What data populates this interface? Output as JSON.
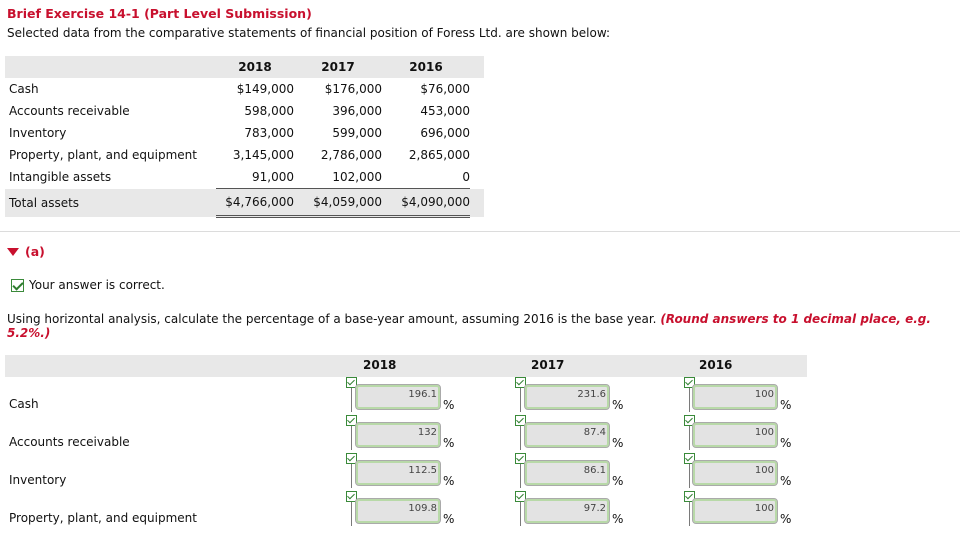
{
  "header": {
    "title": "Brief Exercise 14-1 (Part Level Submission)",
    "subtitle": "Selected data from the comparative statements of financial position of Foress Ltd. are shown below:"
  },
  "statement": {
    "years": [
      "2018",
      "2017",
      "2016"
    ],
    "rows": [
      {
        "label": "Cash",
        "values": [
          "$149,000",
          "$176,000",
          "$76,000"
        ]
      },
      {
        "label": "Accounts receivable",
        "values": [
          "598,000",
          "396,000",
          "453,000"
        ]
      },
      {
        "label": "Inventory",
        "values": [
          "783,000",
          "599,000",
          "696,000"
        ]
      },
      {
        "label": "Property, plant, and equipment",
        "values": [
          "3,145,000",
          "2,786,000",
          "2,865,000"
        ]
      },
      {
        "label": "Intangible assets",
        "values": [
          "91,000",
          "102,000",
          "0"
        ]
      }
    ],
    "total": {
      "label": "Total assets",
      "values": [
        "$4,766,000",
        "$4,059,000",
        "$4,090,000"
      ]
    }
  },
  "part_a": {
    "label": "(a)",
    "status": "Your answer is correct.",
    "instruction": "Using horizontal analysis, calculate the percentage of a base-year amount, assuming 2016 is the base year.",
    "round_note": "(Round answers to 1 decimal place, e.g. 5.2%.)",
    "years": [
      "2018",
      "2017",
      "2016"
    ],
    "pct_sign": "%",
    "rows": [
      {
        "label": "Cash",
        "values": [
          "196.1",
          "231.6",
          "100"
        ]
      },
      {
        "label": "Accounts receivable",
        "values": [
          "132",
          "87.4",
          "100"
        ]
      },
      {
        "label": "Inventory",
        "values": [
          "112.5",
          "86.1",
          "100"
        ]
      },
      {
        "label": "Property, plant, and equipment",
        "values": [
          "109.8",
          "97.2",
          "100"
        ]
      }
    ]
  },
  "colors": {
    "accent_red": "#c8102e",
    "correct_green": "#2f7d2f",
    "header_gray": "#e8e8e8"
  }
}
